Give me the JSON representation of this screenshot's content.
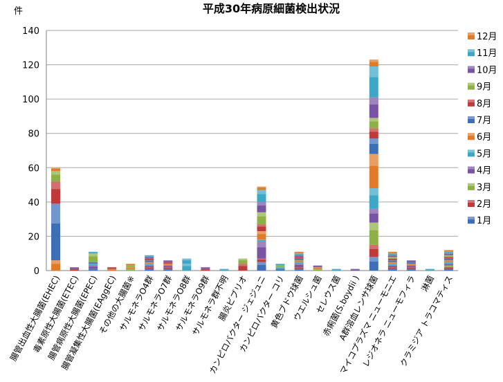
{
  "chart_data": {
    "type": "bar",
    "stacked": true,
    "title": "平成30年病原細菌検出状況",
    "ylabel": "件",
    "ylim": [
      0,
      140
    ],
    "yticks": [
      0,
      20,
      40,
      60,
      80,
      100,
      120,
      140
    ],
    "grid": true,
    "legend_position": "right",
    "categories": [
      "腸管出血性大腸菌(EHEC)",
      "毒素原性大腸菌(ETEC)",
      "腸管病原性大腸菌(EPEC)",
      "腸管凝集性大腸菌(EAggEC)",
      "その他の大腸菌※",
      "サルモネラO4群",
      "サルモネラO7群",
      "サルモネラO8群",
      "サルモネラO9群",
      "サルモネラ群不明",
      "腸炎ビブリオ",
      "カンピロバクター ジェジュニ",
      "カンピロバクター コリ",
      "黄色ブドウ球菌",
      "ウエルシュ菌",
      "セレウス菌",
      "赤痢菌(S.boydii )",
      "A群溶血レンサ球菌",
      "マイコプラズマ ニューモニエ",
      "レジオネラ ニューモフィラ",
      "淋菌",
      "クラミジア トラコマティス"
    ],
    "series": [
      {
        "name": "1月",
        "color": "#3e6fb6",
        "values": [
          0,
          0,
          1,
          0,
          0,
          1,
          1,
          0,
          0,
          0,
          0,
          5,
          1,
          1,
          0,
          0,
          0,
          8,
          1,
          1,
          0,
          1
        ]
      },
      {
        "name": "2月",
        "color": "#c0393b",
        "values": [
          0,
          0,
          0,
          0,
          0,
          1,
          1,
          0,
          0,
          0,
          4,
          2,
          0,
          1,
          0,
          0,
          0,
          7,
          1,
          1,
          0,
          1
        ]
      },
      {
        "name": "3月",
        "color": "#8fb046",
        "values": [
          0,
          0,
          0,
          0,
          1,
          0,
          0,
          0,
          0,
          0,
          3,
          0,
          0,
          0,
          1,
          0,
          0,
          13,
          0,
          0,
          0,
          1
        ]
      },
      {
        "name": "4月",
        "color": "#7954a3",
        "values": [
          0,
          0,
          2,
          0,
          0,
          1,
          1,
          0,
          0,
          0,
          0,
          10,
          0,
          2,
          0,
          0,
          0,
          8,
          1,
          1,
          0,
          1
        ]
      },
      {
        "name": "5月",
        "color": "#3fa7c5",
        "values": [
          0,
          0,
          1,
          0,
          0,
          1,
          0,
          4,
          0,
          0,
          0,
          1,
          1,
          1,
          0,
          0,
          0,
          12,
          1,
          0,
          0,
          1
        ]
      },
      {
        "name": "6月",
        "color": "#e07b2a",
        "values": [
          6,
          0,
          0,
          1,
          1,
          1,
          1,
          0,
          0,
          0,
          0,
          5,
          0,
          1,
          1,
          0,
          0,
          20,
          1,
          1,
          0,
          1
        ]
      },
      {
        "name": "7月",
        "color": "#3e6fb6",
        "values": [
          33,
          0,
          1,
          0,
          0,
          1,
          0,
          0,
          0,
          0,
          0,
          0,
          0,
          1,
          0,
          0,
          0,
          9,
          1,
          1,
          0,
          1
        ]
      },
      {
        "name": "8月",
        "color": "#c0393b",
        "values": [
          13,
          1,
          0,
          1,
          0,
          1,
          1,
          0,
          1,
          0,
          0,
          4,
          0,
          1,
          0,
          0,
          0,
          6,
          1,
          0,
          0,
          1
        ]
      },
      {
        "name": "9月",
        "color": "#8fb046",
        "values": [
          6,
          0,
          5,
          0,
          1,
          0,
          0,
          0,
          0,
          0,
          0,
          7,
          1,
          0,
          0,
          0,
          0,
          6,
          1,
          0,
          0,
          1
        ]
      },
      {
        "name": "10月",
        "color": "#7954a3",
        "values": [
          0,
          1,
          0,
          0,
          0,
          1,
          1,
          0,
          1,
          0,
          0,
          6,
          0,
          1,
          1,
          0,
          1,
          12,
          1,
          1,
          0,
          1
        ]
      },
      {
        "name": "11月",
        "color": "#3fa7c5",
        "values": [
          0,
          0,
          1,
          0,
          0,
          1,
          0,
          3,
          0,
          1,
          0,
          7,
          1,
          1,
          0,
          1,
          0,
          18,
          1,
          0,
          1,
          1
        ]
      },
      {
        "name": "12月",
        "color": "#e07b2a",
        "values": [
          2,
          0,
          0,
          0,
          1,
          0,
          0,
          0,
          0,
          0,
          0,
          2,
          0,
          1,
          0,
          0,
          0,
          4,
          1,
          0,
          0,
          1
        ]
      }
    ]
  }
}
